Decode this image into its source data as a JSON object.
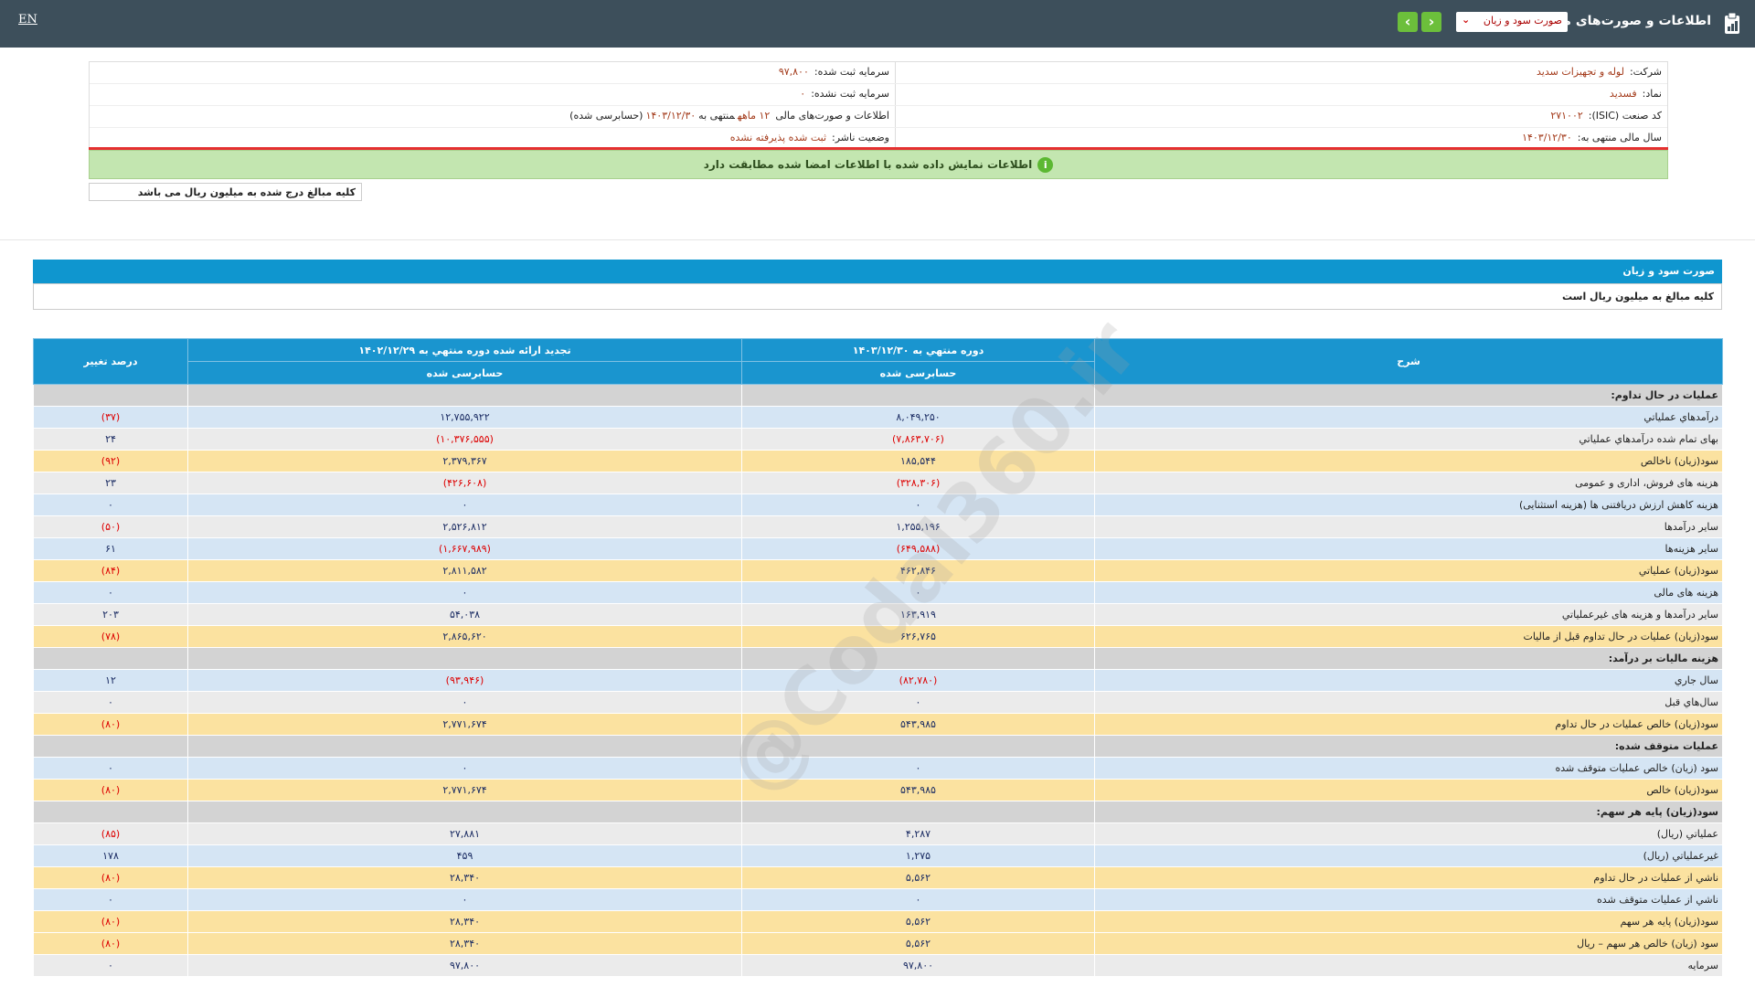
{
  "header": {
    "lang": "EN",
    "title": "اطلاعات و صورت‌های مالی",
    "report_select": "صورت سود و زیان"
  },
  "info": {
    "rows": [
      {
        "right": {
          "label": "شرکت:",
          "value": "لوله و تجهیزات سدید"
        },
        "left": {
          "label": "سرمایه ثبت شده:",
          "value": "۹۷,۸۰۰"
        }
      },
      {
        "right": {
          "label": "نماد:",
          "value": "فسدید"
        },
        "left": {
          "label": "سرمایه ثبت نشده:",
          "value": "۰"
        }
      },
      {
        "right": {
          "label": "کد صنعت (ISIC):",
          "value": "۲۷۱۰۰۲"
        },
        "left": {
          "label": "اطلاعات و صورت‌های مالی",
          "value": [
            "۱۲ ماهه",
            "منتهی به",
            "۱۴۰۳/۱۲/۳۰",
            "(حسابرسی شده)"
          ]
        }
      },
      {
        "right": {
          "label": "سال مالی منتهی به:",
          "value": "۱۴۰۳/۱۲/۳۰"
        },
        "left": {
          "label": "وضعیت ناشر:",
          "value": "ثبت شده پذیرفته نشده"
        }
      }
    ]
  },
  "notice": "اطلاعات نمایش داده شده با اطلاعات امضا شده مطابقت دارد",
  "unit_note": "کلیه مبالغ درج شده به میلیون ریال می باشد",
  "watermark": "@Codal360.ir",
  "statement": {
    "title": "صورت سود و زیان",
    "subtitle": "کلیه مبالغ به میلیون ریال است",
    "columns": {
      "desc": "شرح",
      "current": "دوره منتهي به ۱۴۰۳/۱۲/۳۰",
      "current_sub": "حسابرسی شده",
      "previous": "تجدید ارائه شده دوره منتهي به ۱۴۰۲/۱۲/۲۹",
      "previous_sub": "حسابرسی شده",
      "change": "درصد تغییر"
    },
    "rows": [
      {
        "label": "عمليات در حال تداوم:",
        "color": "#d3d3d3"
      },
      {
        "label": "درآمدهاي عملياتي",
        "current": "۸,۰۴۹,۲۵۰",
        "previous": "۱۲,۷۵۵,۹۲۲",
        "change": "(۳۷)",
        "color": "#d5e5f4"
      },
      {
        "label": "بهاى تمام شده درآمدهاي عملياتي",
        "current": "(۷,۸۶۳,۷۰۶)",
        "previous": "(۱۰,۳۷۶,۵۵۵)",
        "change": "۲۴",
        "color": "#ebebeb"
      },
      {
        "label": "سود(زيان) ناخالص",
        "current": "۱۸۵,۵۴۴",
        "previous": "۲,۳۷۹,۳۶۷",
        "change": "(۹۲)",
        "color": "#fbe2a0"
      },
      {
        "label": "هزينه هاى فروش، ادارى و عمومى",
        "current": "(۳۲۸,۳۰۶)",
        "previous": "(۴۲۶,۶۰۸)",
        "change": "۲۳",
        "color": "#ebebeb"
      },
      {
        "label": "هزینه کاهش ارزش دریافتنی ها (هزینه استثنایی)",
        "current": "۰",
        "previous": "۰",
        "change": "۰",
        "color": "#d5e5f4"
      },
      {
        "label": "ساير درآمدها",
        "current": "۱,۲۵۵,۱۹۶",
        "previous": "۲,۵۲۶,۸۱۲",
        "change": "(۵۰)",
        "color": "#ebebeb"
      },
      {
        "label": "ساير هزينه‌ها",
        "current": "(۶۴۹,۵۸۸)",
        "previous": "(۱,۶۶۷,۹۸۹)",
        "change": "۶۱",
        "color": "#d5e5f4"
      },
      {
        "label": "سود(زيان) عملياتي",
        "current": "۴۶۲,۸۴۶",
        "previous": "۲,۸۱۱,۵۸۲",
        "change": "(۸۴)",
        "color": "#fbe2a0"
      },
      {
        "label": "هزينه هاى مالى",
        "current": "۰",
        "previous": "۰",
        "change": "۰",
        "color": "#d5e5f4"
      },
      {
        "label": "ساير درآمدها و هزينه هاى غيرعملياتي",
        "current": "۱۶۳,۹۱۹",
        "previous": "۵۴,۰۳۸",
        "change": "۲۰۳",
        "color": "#ebebeb"
      },
      {
        "label": "سود(زيان) عمليات در حال تداوم قبل از ماليات",
        "current": "۶۲۶,۷۶۵",
        "previous": "۲,۸۶۵,۶۲۰",
        "change": "(۷۸)",
        "color": "#fbe2a0"
      },
      {
        "label": "هزينه ماليات بر درآمد:",
        "color": "#d3d3d3"
      },
      {
        "label": "سال جاري",
        "current": "(۸۲,۷۸۰)",
        "previous": "(۹۳,۹۴۶)",
        "change": "۱۲",
        "color": "#d5e5f4"
      },
      {
        "label": "سال‌هاي قبل",
        "current": "۰",
        "previous": "۰",
        "change": "۰",
        "color": "#ebebeb"
      },
      {
        "label": "سود(زيان) خالص عمليات در حال تداوم",
        "current": "۵۴۳,۹۸۵",
        "previous": "۲,۷۷۱,۶۷۴",
        "change": "(۸۰)",
        "color": "#fbe2a0"
      },
      {
        "label": "عمليات متوقف شده:",
        "color": "#d3d3d3"
      },
      {
        "label": "سود (زيان) خالص عمليات متوقف شده",
        "current": "۰",
        "previous": "۰",
        "change": "۰",
        "color": "#d5e5f4"
      },
      {
        "label": "سود(زيان) خالص",
        "current": "۵۴۳,۹۸۵",
        "previous": "۲,۷۷۱,۶۷۴",
        "change": "(۸۰)",
        "color": "#fbe2a0"
      },
      {
        "label": "سود(زيان) پايه هر سهم:",
        "color": "#d3d3d3"
      },
      {
        "label": "عملياتي (ريال)",
        "current": "۴,۲۸۷",
        "previous": "۲۷,۸۸۱",
        "change": "(۸۵)",
        "color": "#ebebeb"
      },
      {
        "label": "غيرعملياتي (ريال)",
        "current": "۱,۲۷۵",
        "previous": "۴۵۹",
        "change": "۱۷۸",
        "color": "#d5e5f4"
      },
      {
        "label": "ناشي از عمليات در حال تداوم",
        "current": "۵,۵۶۲",
        "previous": "۲۸,۳۴۰",
        "change": "(۸۰)",
        "color": "#fbe2a0"
      },
      {
        "label": "ناشي از عمليات متوقف شده",
        "current": "۰",
        "previous": "۰",
        "change": "۰",
        "color": "#d5e5f4"
      },
      {
        "label": "سود(زيان) پايه هر سهم",
        "current": "۵,۵۶۲",
        "previous": "۲۸,۳۴۰",
        "change": "(۸۰)",
        "color": "#fbe2a0"
      },
      {
        "label": "سود (زيان) خالص هر سهم – ريال",
        "current": "۵,۵۶۲",
        "previous": "۲۸,۳۴۰",
        "change": "(۸۰)",
        "color": "#fbe2a0"
      },
      {
        "label": "سرمايه",
        "current": "۹۷,۸۰۰",
        "previous": "۹۷,۸۰۰",
        "change": "۰",
        "color": "#ebebeb"
      }
    ]
  }
}
